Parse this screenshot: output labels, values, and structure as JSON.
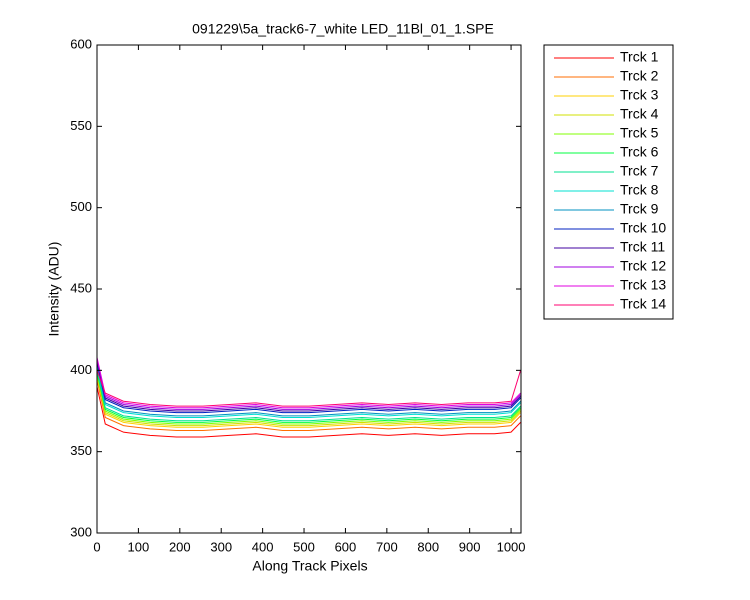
{
  "chart_data": {
    "type": "line",
    "title": "091229\\5a_track6-7_white LED_11Bl_01_1.SPE",
    "x_label": "Along Track Pixels",
    "y_label": "Intensity (ADU)",
    "x": [
      0,
      20,
      64,
      128,
      192,
      256,
      320,
      384,
      448,
      512,
      576,
      640,
      704,
      768,
      832,
      896,
      960,
      1000,
      1023
    ],
    "xlim": [
      0,
      1024
    ],
    "xticks": [
      0,
      100,
      200,
      300,
      400,
      500,
      600,
      700,
      800,
      900,
      1000
    ],
    "ylim": [
      300,
      600
    ],
    "yticks": [
      300,
      350,
      400,
      450,
      500,
      550,
      600
    ],
    "legend": "outside-right",
    "series": [
      {
        "name": "Trck 1",
        "color": "#ff0000",
        "values": [
          390,
          367,
          362,
          360,
          359,
          359,
          360,
          361,
          359,
          359,
          360,
          361,
          360,
          361,
          360,
          361,
          361,
          362,
          368
        ]
      },
      {
        "name": "Trck 2",
        "color": "#ff6e00",
        "values": [
          394,
          371,
          366,
          364,
          363,
          363,
          364,
          365,
          363,
          363,
          364,
          365,
          364,
          365,
          364,
          365,
          365,
          366,
          372
        ]
      },
      {
        "name": "Trck 3",
        "color": "#ffd000",
        "values": [
          396,
          373,
          368,
          366,
          365,
          365,
          366,
          367,
          365,
          365,
          366,
          367,
          366,
          367,
          366,
          367,
          367,
          368,
          374
        ]
      },
      {
        "name": "Trck 4",
        "color": "#d0e000",
        "values": [
          397,
          374,
          369,
          367,
          366,
          366,
          367,
          368,
          366,
          366,
          367,
          368,
          367,
          368,
          367,
          368,
          368,
          369,
          375
        ]
      },
      {
        "name": "Trck 5",
        "color": "#80ff00",
        "values": [
          398,
          375,
          370,
          368,
          367,
          367,
          368,
          369,
          367,
          367,
          368,
          369,
          368,
          369,
          368,
          369,
          369,
          370,
          376
        ]
      },
      {
        "name": "Trck 6",
        "color": "#00ff40",
        "values": [
          399,
          376,
          371,
          369,
          368,
          368,
          369,
          370,
          368,
          368,
          369,
          370,
          369,
          370,
          369,
          370,
          370,
          371,
          377
        ]
      },
      {
        "name": "Trck 7",
        "color": "#00e090",
        "values": [
          400,
          377,
          372,
          370,
          369,
          369,
          370,
          371,
          369,
          369,
          370,
          371,
          370,
          371,
          370,
          371,
          371,
          372,
          378
        ]
      },
      {
        "name": "Trck 8",
        "color": "#00e0d0",
        "values": [
          402,
          379,
          374,
          372,
          371,
          371,
          372,
          373,
          371,
          371,
          372,
          373,
          372,
          373,
          372,
          373,
          373,
          374,
          380
        ]
      },
      {
        "name": "Trck 9",
        "color": "#0090c0",
        "values": [
          403,
          380,
          375,
          373,
          372,
          372,
          373,
          374,
          372,
          372,
          373,
          374,
          373,
          374,
          373,
          374,
          374,
          375,
          381
        ]
      },
      {
        "name": "Trck 10",
        "color": "#0020c0",
        "values": [
          405,
          382,
          377,
          375,
          374,
          374,
          375,
          376,
          374,
          374,
          375,
          376,
          375,
          376,
          375,
          376,
          376,
          377,
          383
        ]
      },
      {
        "name": "Trck 11",
        "color": "#4000a0",
        "values": [
          406,
          383,
          378,
          376,
          375,
          375,
          376,
          377,
          375,
          375,
          376,
          377,
          376,
          377,
          376,
          377,
          377,
          378,
          384
        ]
      },
      {
        "name": "Trck 12",
        "color": "#a000e0",
        "values": [
          407,
          384,
          379,
          377,
          376,
          376,
          377,
          378,
          376,
          376,
          377,
          378,
          377,
          378,
          377,
          378,
          378,
          379,
          385
        ]
      },
      {
        "name": "Trck 13",
        "color": "#e000e0",
        "values": [
          408,
          385,
          380,
          378,
          377,
          377,
          378,
          379,
          377,
          377,
          378,
          379,
          378,
          379,
          378,
          379,
          379,
          380,
          386
        ]
      },
      {
        "name": "Trck 14",
        "color": "#ff0070",
        "values": [
          400,
          386,
          381,
          379,
          378,
          378,
          379,
          380,
          378,
          378,
          379,
          380,
          379,
          380,
          379,
          380,
          380,
          381,
          400
        ]
      }
    ]
  }
}
